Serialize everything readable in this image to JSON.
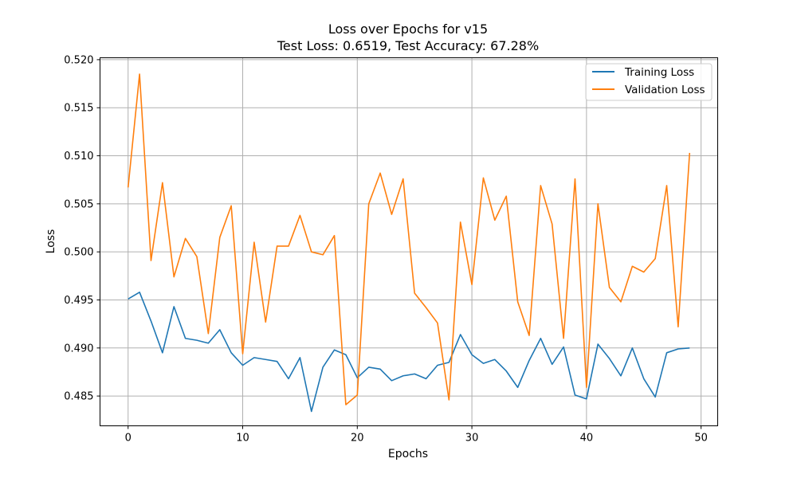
{
  "chart_data": {
    "type": "line",
    "title": "Loss over Epochs for v15",
    "subtitle": "Test Loss: 0.6519, Test Accuracy: 67.28%",
    "xlabel": "Epochs",
    "ylabel": "Loss",
    "xlim": [
      -2.45,
      51.45
    ],
    "ylim": [
      0.4819,
      0.5202
    ],
    "xticks": [
      0,
      10,
      20,
      30,
      40,
      50
    ],
    "yticks": [
      0.485,
      0.49,
      0.495,
      0.5,
      0.505,
      0.51,
      0.515,
      0.52
    ],
    "xtick_labels": [
      "0",
      "10",
      "20",
      "30",
      "40",
      "50"
    ],
    "ytick_labels": [
      "0.485",
      "0.490",
      "0.495",
      "0.500",
      "0.505",
      "0.510",
      "0.515",
      "0.520"
    ],
    "grid": true,
    "legend_position": "top-right",
    "x": [
      0,
      1,
      2,
      3,
      4,
      5,
      6,
      7,
      8,
      9,
      10,
      11,
      12,
      13,
      14,
      15,
      16,
      17,
      18,
      19,
      20,
      21,
      22,
      23,
      24,
      25,
      26,
      27,
      28,
      29,
      30,
      31,
      32,
      33,
      34,
      35,
      36,
      37,
      38,
      39,
      40,
      41,
      42,
      43,
      44,
      45,
      46,
      47,
      48,
      49
    ],
    "series": [
      {
        "name": "Training Loss",
        "color": "#1f77b4",
        "values": [
          0.4951,
          0.4958,
          0.4928,
          0.4895,
          0.4943,
          0.491,
          0.4908,
          0.4905,
          0.4919,
          0.4895,
          0.4882,
          0.489,
          0.4888,
          0.4886,
          0.4868,
          0.489,
          0.4834,
          0.488,
          0.4898,
          0.4893,
          0.4869,
          0.488,
          0.4878,
          0.4866,
          0.4871,
          0.4873,
          0.4868,
          0.4882,
          0.4885,
          0.4914,
          0.4893,
          0.4884,
          0.4888,
          0.4876,
          0.4859,
          0.4887,
          0.491,
          0.4883,
          0.4901,
          0.4851,
          0.4847,
          0.4904,
          0.4889,
          0.4871,
          0.49,
          0.4868,
          0.4849,
          0.4895,
          0.4899,
          0.49
        ]
      },
      {
        "name": "Validation Loss",
        "color": "#ff7f0e",
        "values": [
          0.5067,
          0.5185,
          0.4991,
          0.5072,
          0.4974,
          0.5014,
          0.4995,
          0.4915,
          0.5015,
          0.5048,
          0.4894,
          0.501,
          0.4927,
          0.5006,
          0.5006,
          0.5038,
          0.5,
          0.4997,
          0.5017,
          0.4841,
          0.4851,
          0.505,
          0.5082,
          0.5039,
          0.5076,
          0.4957,
          0.4942,
          0.4926,
          0.4846,
          0.5031,
          0.4966,
          0.5077,
          0.5033,
          0.5058,
          0.4948,
          0.4913,
          0.5069,
          0.5029,
          0.491,
          0.5076,
          0.4859,
          0.505,
          0.4963,
          0.4948,
          0.4985,
          0.4979,
          0.4993,
          0.5069,
          0.4922,
          0.5103
        ]
      }
    ]
  }
}
